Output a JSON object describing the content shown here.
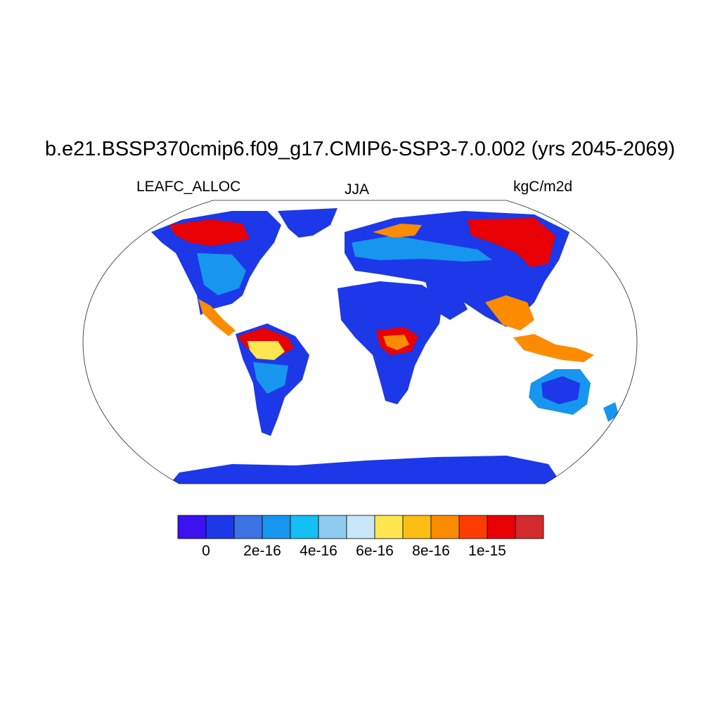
{
  "title": "b.e21.BSSP370cmip6.f09_g17.CMIP6-SSP3-7.0.002 (yrs 2045-2069)",
  "left_label": "LEAFC_ALLOC",
  "center_label": "JJA",
  "right_label": "kgC/m2d",
  "colorbar": {
    "colors": [
      "#3d12f0",
      "#1c38e8",
      "#3a74e6",
      "#1796f0",
      "#14bff5",
      "#8ecbee",
      "#c9e7f8",
      "#fde64f",
      "#fdbe13",
      "#fd8b00",
      "#fd3d00",
      "#e90005",
      "#d22a2d"
    ],
    "tick_labels": [
      "0",
      "2e-16",
      "4e-16",
      "6e-16",
      "8e-16",
      "1e-15"
    ]
  },
  "map_colors": {
    "ocean": "#ffffff",
    "low": "#1c38e8",
    "mid": "#1796f0",
    "light": "#8ecbee",
    "yellow": "#fde64f",
    "orange": "#fd8b00",
    "red": "#e90005",
    "deepred": "#d22a2d"
  }
}
